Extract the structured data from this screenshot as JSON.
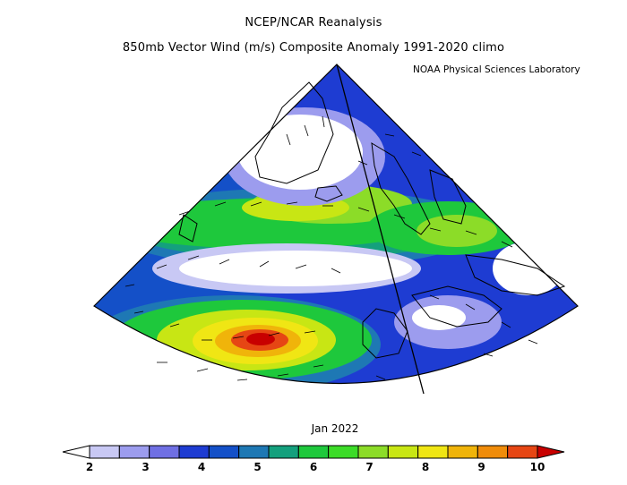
{
  "header": {
    "title_line1": "NCEP/NCAR Reanalysis",
    "title_line2": "850mb Vector Wind (m/s) Composite Anomaly 1991-2020 climo",
    "credit": "NOAA Physical Sciences Laboratory"
  },
  "map": {
    "date_label": "Jan 2022",
    "variable": "850mb vector wind anomaly magnitude",
    "units": "m/s"
  },
  "colorbar": {
    "tick_labels": [
      "2",
      "3",
      "4",
      "5",
      "6",
      "7",
      "8",
      "9",
      "10"
    ],
    "colors": [
      "#ffffff",
      "#c8c8f4",
      "#9c9cee",
      "#6f6fe3",
      "#1e3cd2",
      "#1450c8",
      "#1e78b4",
      "#14a07d",
      "#1ec83c",
      "#3cdc28",
      "#8cdc28",
      "#c8e614",
      "#f0e614",
      "#f0b40a",
      "#f08c0a",
      "#e64614",
      "#c80000"
    ]
  },
  "colors": {
    "land_outline": "#000000",
    "wind_vector": "#000000"
  }
}
